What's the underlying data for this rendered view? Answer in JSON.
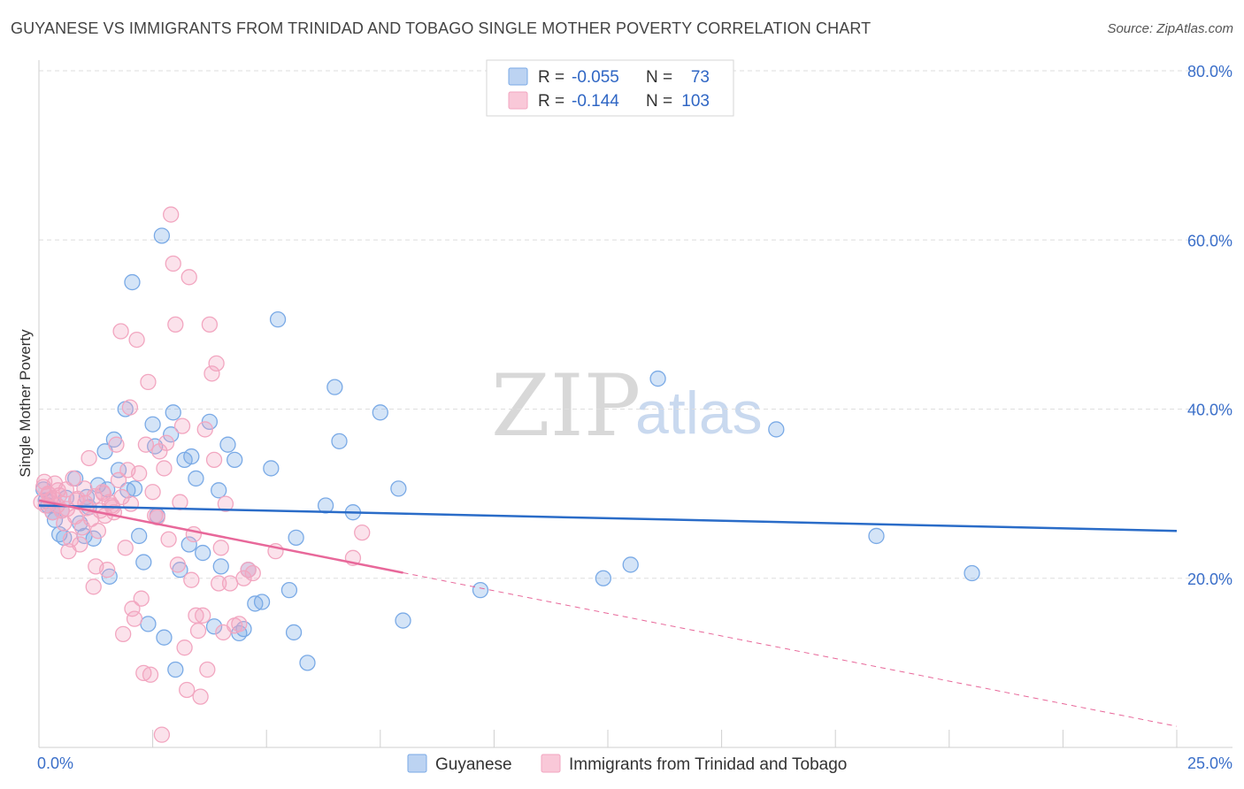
{
  "title": "GUYANESE VS IMMIGRANTS FROM TRINIDAD AND TOBAGO SINGLE MOTHER POVERTY CORRELATION CHART",
  "source": "Source: ZipAtlas.com",
  "watermark": {
    "zip": "ZIP",
    "atlas": "atlas"
  },
  "legend": {
    "rows": [
      {
        "r_label": "R =",
        "r_value": "-0.055",
        "n_label": "N =",
        "n_value": "73"
      },
      {
        "r_label": "R =",
        "r_value": "-0.144",
        "n_label": "N =",
        "n_value": "103"
      }
    ]
  },
  "chart_data": {
    "type": "scatter",
    "title": "GUYANESE VS IMMIGRANTS FROM TRINIDAD AND TOBAGO SINGLE MOTHER POVERTY CORRELATION CHART",
    "xlabel": "",
    "ylabel": "Single Mother Poverty",
    "xlim": [
      0,
      25
    ],
    "ylim": [
      0,
      80
    ],
    "x_tick_labels": [
      "0.0%",
      "25.0%"
    ],
    "y_ticks": [
      20,
      40,
      60,
      80
    ],
    "y_tick_labels": [
      "20.0%",
      "40.0%",
      "60.0%",
      "80.0%"
    ],
    "grid": true,
    "legend_position": "top-center",
    "series": [
      {
        "name": "Guyanese",
        "color": "#7aaae6",
        "line_color": "#2a6cc8",
        "trend": {
          "x0": 0,
          "y0": 28.6,
          "x1": 25,
          "y1": 25.6,
          "dashed_from": null
        },
        "points": [
          [
            0.1,
            30.5
          ],
          [
            0.15,
            29.2
          ],
          [
            0.2,
            28.6
          ],
          [
            0.3,
            27.8
          ],
          [
            0.35,
            26.9
          ],
          [
            0.45,
            25.2
          ],
          [
            0.55,
            24.8
          ],
          [
            0.5,
            28.0
          ],
          [
            0.6,
            29.5
          ],
          [
            0.8,
            31.8
          ],
          [
            0.9,
            26.5
          ],
          [
            1.0,
            25.0
          ],
          [
            1.1,
            28.4
          ],
          [
            1.2,
            24.7
          ],
          [
            1.3,
            31.0
          ],
          [
            1.45,
            35.0
          ],
          [
            1.5,
            30.5
          ],
          [
            1.55,
            20.2
          ],
          [
            1.65,
            36.4
          ],
          [
            1.75,
            32.8
          ],
          [
            1.9,
            40.0
          ],
          [
            1.95,
            30.4
          ],
          [
            2.05,
            55.0
          ],
          [
            2.1,
            30.6
          ],
          [
            2.2,
            25.0
          ],
          [
            2.3,
            21.9
          ],
          [
            2.4,
            14.6
          ],
          [
            2.5,
            38.2
          ],
          [
            2.55,
            35.6
          ],
          [
            2.6,
            27.4
          ],
          [
            2.7,
            60.5
          ],
          [
            2.75,
            13.0
          ],
          [
            2.9,
            37.0
          ],
          [
            2.95,
            39.6
          ],
          [
            3.0,
            9.2
          ],
          [
            3.1,
            21.0
          ],
          [
            3.2,
            34.0
          ],
          [
            3.3,
            24.0
          ],
          [
            3.35,
            34.4
          ],
          [
            3.45,
            31.8
          ],
          [
            3.6,
            23.0
          ],
          [
            3.75,
            38.5
          ],
          [
            3.85,
            14.3
          ],
          [
            3.95,
            30.4
          ],
          [
            4.0,
            21.4
          ],
          [
            4.15,
            35.8
          ],
          [
            4.3,
            34.0
          ],
          [
            4.4,
            13.5
          ],
          [
            4.5,
            14.0
          ],
          [
            4.6,
            21.0
          ],
          [
            4.75,
            17.0
          ],
          [
            4.9,
            17.2
          ],
          [
            5.1,
            33.0
          ],
          [
            5.25,
            50.6
          ],
          [
            5.5,
            18.6
          ],
          [
            5.6,
            13.6
          ],
          [
            5.65,
            24.8
          ],
          [
            5.9,
            10.0
          ],
          [
            6.3,
            28.6
          ],
          [
            6.5,
            42.6
          ],
          [
            6.6,
            36.2
          ],
          [
            6.9,
            27.8
          ],
          [
            7.5,
            39.6
          ],
          [
            7.9,
            30.6
          ],
          [
            8.0,
            15.0
          ],
          [
            9.7,
            18.6
          ],
          [
            12.4,
            20.0
          ],
          [
            13.0,
            21.6
          ],
          [
            13.6,
            43.6
          ],
          [
            16.2,
            37.6
          ],
          [
            18.4,
            25.0
          ],
          [
            20.5,
            20.6
          ],
          [
            1.05,
            29.6
          ]
        ]
      },
      {
        "name": "Immigrants from Trinidad and Tobago",
        "color": "#f2a6c0",
        "line_color": "#e8689a",
        "trend": {
          "x0": 0,
          "y0": 29.2,
          "x1": 25,
          "y1": 2.5,
          "dashed_from": 8.0
        },
        "points": [
          [
            0.05,
            29.0
          ],
          [
            0.1,
            30.8
          ],
          [
            0.15,
            28.6
          ],
          [
            0.2,
            30.0
          ],
          [
            0.25,
            29.3
          ],
          [
            0.3,
            27.8
          ],
          [
            0.35,
            31.2
          ],
          [
            0.4,
            28.6
          ],
          [
            0.45,
            29.8
          ],
          [
            0.5,
            28.0
          ],
          [
            0.55,
            26.5
          ],
          [
            0.6,
            30.5
          ],
          [
            0.65,
            23.2
          ],
          [
            0.7,
            24.6
          ],
          [
            0.75,
            31.8
          ],
          [
            0.8,
            27.3
          ],
          [
            0.85,
            29.4
          ],
          [
            0.9,
            24.0
          ],
          [
            0.95,
            26.0
          ],
          [
            1.0,
            30.6
          ],
          [
            1.05,
            28.3
          ],
          [
            1.1,
            34.2
          ],
          [
            1.15,
            27.0
          ],
          [
            1.2,
            19.0
          ],
          [
            1.25,
            21.4
          ],
          [
            1.3,
            25.6
          ],
          [
            1.35,
            28.0
          ],
          [
            1.4,
            30.2
          ],
          [
            1.45,
            27.4
          ],
          [
            1.5,
            21.0
          ],
          [
            1.55,
            29.0
          ],
          [
            1.6,
            28.6
          ],
          [
            1.65,
            27.8
          ],
          [
            1.7,
            35.8
          ],
          [
            1.75,
            31.6
          ],
          [
            1.8,
            49.2
          ],
          [
            1.85,
            13.4
          ],
          [
            1.9,
            23.6
          ],
          [
            1.95,
            32.8
          ],
          [
            2.0,
            40.2
          ],
          [
            2.05,
            16.4
          ],
          [
            2.1,
            15.2
          ],
          [
            2.15,
            48.2
          ],
          [
            2.2,
            32.4
          ],
          [
            2.25,
            17.6
          ],
          [
            2.3,
            8.8
          ],
          [
            2.35,
            35.8
          ],
          [
            2.4,
            43.2
          ],
          [
            2.45,
            8.6
          ],
          [
            2.5,
            30.2
          ],
          [
            2.55,
            27.4
          ],
          [
            2.6,
            27.2
          ],
          [
            2.65,
            35.0
          ],
          [
            2.7,
            1.5
          ],
          [
            2.75,
            33.0
          ],
          [
            2.8,
            36.0
          ],
          [
            2.85,
            24.6
          ],
          [
            2.9,
            63.0
          ],
          [
            2.95,
            57.2
          ],
          [
            3.0,
            50.0
          ],
          [
            3.05,
            21.6
          ],
          [
            3.1,
            29.0
          ],
          [
            3.15,
            38.0
          ],
          [
            3.2,
            11.8
          ],
          [
            3.25,
            6.8
          ],
          [
            3.3,
            55.6
          ],
          [
            3.35,
            19.8
          ],
          [
            3.4,
            25.2
          ],
          [
            3.45,
            15.6
          ],
          [
            3.5,
            13.8
          ],
          [
            3.55,
            6.0
          ],
          [
            3.6,
            15.6
          ],
          [
            3.65,
            37.6
          ],
          [
            3.7,
            9.2
          ],
          [
            3.75,
            50.0
          ],
          [
            3.8,
            44.2
          ],
          [
            3.85,
            34.0
          ],
          [
            3.9,
            45.4
          ],
          [
            3.95,
            19.4
          ],
          [
            4.0,
            23.6
          ],
          [
            4.05,
            13.6
          ],
          [
            4.1,
            28.8
          ],
          [
            4.2,
            19.4
          ],
          [
            4.3,
            14.4
          ],
          [
            4.4,
            14.6
          ],
          [
            4.5,
            20.0
          ],
          [
            4.6,
            21.0
          ],
          [
            4.7,
            20.6
          ],
          [
            5.2,
            23.2
          ],
          [
            6.9,
            22.4
          ],
          [
            7.1,
            25.4
          ],
          [
            0.12,
            31.4
          ],
          [
            0.22,
            29.9
          ],
          [
            0.42,
            30.4
          ],
          [
            0.62,
            28.2
          ],
          [
            0.82,
            29.2
          ],
          [
            1.02,
            28.9
          ],
          [
            1.22,
            29.7
          ],
          [
            1.42,
            30.0
          ],
          [
            1.62,
            28.4
          ],
          [
            1.82,
            29.6
          ],
          [
            2.02,
            28.8
          ],
          [
            0.32,
            29.4
          ]
        ]
      }
    ]
  }
}
